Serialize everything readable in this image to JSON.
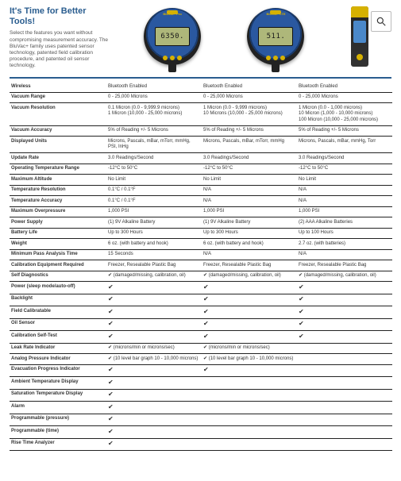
{
  "hero": {
    "title": "It's Time for Better Tools!",
    "blurb": "Select the features you want without compromising measurement accuracy. The BluVac+ family uses patented sensor technology, patented field calibration procedure, and patented oil sensor technology."
  },
  "products": {
    "a": {
      "badge": "BluVac+ Pro",
      "lcd": "6350."
    },
    "b": {
      "badge": "BluVac+ LTE",
      "lcd": "511."
    }
  },
  "check": "✔",
  "rows": [
    {
      "label": "Wireless",
      "a": "Bluetooth Enabled",
      "b": "Bluetooth Enabled",
      "c": "Bluetooth Enabled"
    },
    {
      "label": "Vacuum Range",
      "a": "0 - 25,000 Microns",
      "b": "0 - 25,000 Microns",
      "c": "0 - 25,000 Microns"
    },
    {
      "label": "Vacuum Resolution",
      "a": "0.1 Micron (0.0 - 9,999.9 microns)\n1 Micron (10,000 - 25,000 microns)",
      "b": "1 Micron (0.0 - 9,999 microns)\n10 Microns (10,000 - 25,000 microns)",
      "c": "1 Micron (0.0 - 1,000 microns)\n10 Micron (1,000 - 10,000 microns)\n100 Micron (10,000 - 25,000 microns)"
    },
    {
      "label": "Vacuum Accuracy",
      "a": "5% of Reading +/- 5 Microns",
      "b": "5% of Reading +/- 5 Microns",
      "c": "5% of Reading +/- 5 Microns"
    },
    {
      "label": "Displayed Units",
      "a": "Microns, Pascals, mBar, mTorr, mmHg, PSI, InHg",
      "b": "Microns, Pascals, mBar, mTorr, mmHg",
      "c": "Microns, Pascals, mBar, mmHg, Torr"
    },
    {
      "label": "Update Rate",
      "a": "3.0 Readings/Second",
      "b": "3.0 Readings/Second",
      "c": "3.0 Readings/Second"
    },
    {
      "label": "Operating Temperature Range",
      "a": "-12°C to 50°C",
      "b": "-12°C to 50°C",
      "c": "-12°C to 50°C"
    },
    {
      "label": "Maximum Altitude",
      "a": "No Limit",
      "b": "No Limit",
      "c": "No Limit"
    },
    {
      "label": "Temperature Resolution",
      "a": "0.1°C / 0.1°F",
      "b": "N/A",
      "c": "N/A"
    },
    {
      "label": "Temperature Accuracy",
      "a": "0.1°C / 0.1°F",
      "b": "N/A",
      "c": "N/A"
    },
    {
      "label": "Maximum Overpressure",
      "a": "1,000 PSI",
      "b": "1,000 PSI",
      "c": "1,000 PSI"
    },
    {
      "label": "Power Supply",
      "a": "(1) 9V Alkaline Battery",
      "b": "(1) 9V Alkaline Battery",
      "c": "(2) AAA Alkaline Batteries"
    },
    {
      "label": "Battery Life",
      "a": "Up to 300 Hours",
      "b": "Up to 300 Hours",
      "c": "Up to 100 Hours"
    },
    {
      "label": "Weight",
      "a": "6 oz. (with battery and hook)",
      "b": "6 oz. (with battery and hook)",
      "c": "2.7 oz. (with batteries)"
    },
    {
      "label": "Minimum Pass Analysis Time",
      "a": "15 Seconds",
      "b": "N/A",
      "c": "N/A"
    },
    {
      "label": "Calibration Equipment Required",
      "a": "Freezer, Resealable Plastic Bag",
      "b": "Freezer, Resealable Plastic Bag",
      "c": "Freezer, Resealable Plastic Bag"
    },
    {
      "label": "Self Diagnostics",
      "a": "✔ (damaged/missing, calibration, oil)",
      "b": "✔ (damaged/missing, calibration, oil)",
      "c": "✔ (damaged/missing, calibration, oil)"
    },
    {
      "label": "Power (sleep mode/auto-off)",
      "a": "✔",
      "b": "✔",
      "c": "✔"
    },
    {
      "label": "Backlight",
      "a": "✔",
      "b": "✔",
      "c": "✔"
    },
    {
      "label": "Field Calibratable",
      "a": "✔",
      "b": "✔",
      "c": "✔"
    },
    {
      "label": "Oil Sensor",
      "a": "✔",
      "b": "✔",
      "c": "✔"
    },
    {
      "label": "Calibration Self-Test",
      "a": "✔",
      "b": "✔",
      "c": "✔"
    },
    {
      "label": "Leak Rate Indicator",
      "a": "✔ (microns/min or microns/sec)",
      "b": "✔ (microns/min or microns/sec)",
      "c": ""
    },
    {
      "label": "Analog Pressure Indicator",
      "a": "✔ (10 level bar graph 10 - 10,000 microns)",
      "b": "✔ (10 level bar graph 10 - 10,000 microns)",
      "c": ""
    },
    {
      "label": "Evacuation Progress Indicator",
      "a": "✔",
      "b": "✔",
      "c": ""
    },
    {
      "label": "Ambient Temperature Display",
      "a": "✔",
      "b": "",
      "c": ""
    },
    {
      "label": "Saturation Temperature Display",
      "a": "✔",
      "b": "",
      "c": ""
    },
    {
      "label": "Alarm",
      "a": "✔",
      "b": "",
      "c": ""
    },
    {
      "label": "Programmable (pressure)",
      "a": "✔",
      "b": "",
      "c": ""
    },
    {
      "label": "Programmable (time)",
      "a": "✔",
      "b": "",
      "c": ""
    },
    {
      "label": "Rise Time Analyzer",
      "a": "✔",
      "b": "",
      "c": ""
    }
  ]
}
